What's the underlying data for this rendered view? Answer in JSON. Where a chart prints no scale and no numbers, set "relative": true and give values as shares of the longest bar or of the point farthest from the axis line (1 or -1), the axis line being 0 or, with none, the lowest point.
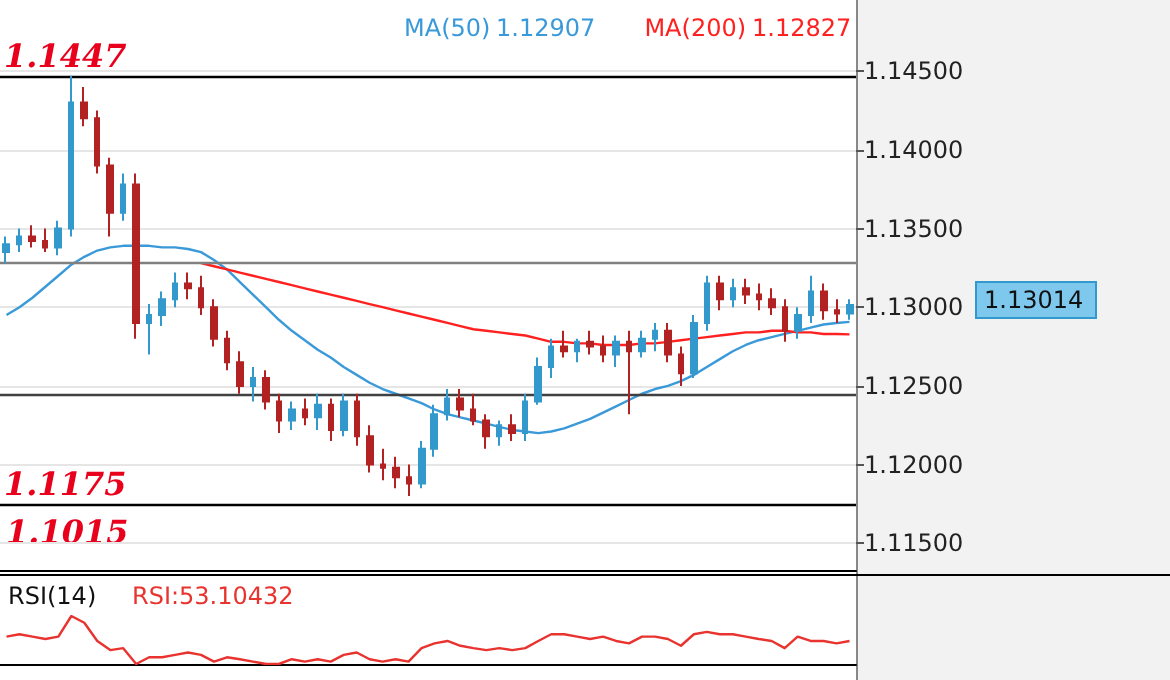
{
  "chart_data": [
    {
      "type": "candlestick",
      "legend": "top",
      "tick_labels": "y",
      "grid": "y",
      "categories": [
        null,
        null,
        null,
        null,
        null,
        null,
        null,
        null,
        null,
        null,
        null,
        null,
        null,
        null,
        null,
        null,
        null,
        null,
        null,
        null,
        null,
        null,
        null,
        null,
        null,
        null,
        null,
        null,
        null,
        null,
        null,
        null,
        null,
        null,
        null,
        null,
        null,
        null,
        null,
        null,
        null,
        null,
        null,
        null,
        null,
        null,
        null,
        null,
        null,
        null,
        null,
        null,
        null,
        null,
        null,
        null,
        null,
        null,
        null,
        null,
        null,
        null,
        null,
        null,
        null,
        null
      ],
      "ohlc": [
        [
          1.1335,
          1.1345,
          1.1328,
          1.134
        ],
        [
          1.134,
          1.135,
          1.1335,
          1.1345
        ],
        [
          1.1345,
          1.1352,
          1.1338,
          1.1342
        ],
        [
          1.1342,
          1.135,
          1.1335,
          1.1338
        ],
        [
          1.1338,
          1.1355,
          1.1333,
          1.135
        ],
        [
          1.135,
          1.1447,
          1.1345,
          1.143
        ],
        [
          1.143,
          1.144,
          1.1415,
          1.142
        ],
        [
          1.142,
          1.1425,
          1.1385,
          1.139
        ],
        [
          1.139,
          1.1395,
          1.1345,
          1.136
        ],
        [
          1.136,
          1.1385,
          1.1355,
          1.1378
        ],
        [
          1.1378,
          1.1385,
          1.128,
          1.129
        ],
        [
          1.129,
          1.1302,
          1.127,
          1.1295
        ],
        [
          1.1295,
          1.131,
          1.1288,
          1.1305
        ],
        [
          1.1305,
          1.1322,
          1.13,
          1.1315
        ],
        [
          1.1315,
          1.1322,
          1.1305,
          1.1312
        ],
        [
          1.1312,
          1.132,
          1.1295,
          1.13
        ],
        [
          1.13,
          1.1305,
          1.1275,
          1.128
        ],
        [
          1.128,
          1.1285,
          1.126,
          1.1265
        ],
        [
          1.1265,
          1.1272,
          1.1245,
          1.125
        ],
        [
          1.125,
          1.1262,
          1.124,
          1.1255
        ],
        [
          1.1255,
          1.126,
          1.1235,
          1.124
        ],
        [
          1.124,
          1.1245,
          1.122,
          1.1228
        ],
        [
          1.1228,
          1.124,
          1.1222,
          1.1235
        ],
        [
          1.1235,
          1.1242,
          1.1225,
          1.123
        ],
        [
          1.123,
          1.1245,
          1.1222,
          1.1238
        ],
        [
          1.1238,
          1.1242,
          1.1215,
          1.1222
        ],
        [
          1.1222,
          1.1245,
          1.1218,
          1.124
        ],
        [
          1.124,
          1.1245,
          1.1212,
          1.1218
        ],
        [
          1.1218,
          1.1225,
          1.1195,
          1.12
        ],
        [
          1.12,
          1.121,
          1.119,
          1.1198
        ],
        [
          1.1198,
          1.1205,
          1.1185,
          1.1192
        ],
        [
          1.1192,
          1.12,
          1.118,
          1.1188
        ],
        [
          1.1188,
          1.1215,
          1.1185,
          1.121
        ],
        [
          1.121,
          1.1238,
          1.1205,
          1.1232
        ],
        [
          1.1232,
          1.1248,
          1.1228,
          1.1242
        ],
        [
          1.1242,
          1.1248,
          1.123,
          1.1235
        ],
        [
          1.1235,
          1.1245,
          1.1225,
          1.1228
        ],
        [
          1.1228,
          1.1232,
          1.121,
          1.1218
        ],
        [
          1.1218,
          1.1228,
          1.1212,
          1.1225
        ],
        [
          1.1225,
          1.1232,
          1.1215,
          1.122
        ],
        [
          1.122,
          1.1245,
          1.1215,
          1.124
        ],
        [
          1.124,
          1.1268,
          1.1238,
          1.1262
        ],
        [
          1.1262,
          1.128,
          1.1255,
          1.1275
        ],
        [
          1.1275,
          1.1285,
          1.1268,
          1.1272
        ],
        [
          1.1272,
          1.128,
          1.1265,
          1.1278
        ],
        [
          1.1278,
          1.1285,
          1.127,
          1.1275
        ],
        [
          1.1275,
          1.1282,
          1.1265,
          1.127
        ],
        [
          1.127,
          1.1282,
          1.1262,
          1.1278
        ],
        [
          1.1278,
          1.1285,
          1.1232,
          1.1272
        ],
        [
          1.1272,
          1.1285,
          1.1268,
          1.128
        ],
        [
          1.128,
          1.129,
          1.1272,
          1.1285
        ],
        [
          1.1285,
          1.129,
          1.1265,
          1.127
        ],
        [
          1.127,
          1.1275,
          1.125,
          1.1258
        ],
        [
          1.1258,
          1.1295,
          1.1255,
          1.129
        ],
        [
          1.129,
          1.132,
          1.1285,
          1.1315
        ],
        [
          1.1315,
          1.132,
          1.1298,
          1.1305
        ],
        [
          1.1305,
          1.1318,
          1.13,
          1.1312
        ],
        [
          1.1312,
          1.1318,
          1.1302,
          1.1308
        ],
        [
          1.1308,
          1.1315,
          1.1298,
          1.1305
        ],
        [
          1.1305,
          1.1312,
          1.1295,
          1.13
        ],
        [
          1.13,
          1.1305,
          1.1278,
          1.1285
        ],
        [
          1.1285,
          1.13,
          1.128,
          1.1295
        ],
        [
          1.1295,
          1.132,
          1.129,
          1.131
        ],
        [
          1.131,
          1.1315,
          1.1292,
          1.1298
        ],
        [
          1.1298,
          1.1305,
          1.129,
          1.1296
        ],
        [
          1.1296,
          1.1305,
          1.1292,
          1.13014
        ]
      ],
      "colors": [
        "#3399cc",
        "#3399cc",
        "#b22222",
        "#b22222",
        "#3399cc",
        "#3399cc",
        "#b22222",
        "#b22222",
        "#b22222",
        "#3399cc",
        "#b22222",
        "#3399cc",
        "#3399cc",
        "#3399cc",
        "#b22222",
        "#b22222",
        "#b22222",
        "#b22222",
        "#b22222",
        "#3399cc",
        "#b22222",
        "#b22222",
        "#3399cc",
        "#b22222",
        "#3399cc",
        "#b22222",
        "#3399cc",
        "#b22222",
        "#b22222",
        "#b22222",
        "#b22222",
        "#b22222",
        "#3399cc",
        "#3399cc",
        "#3399cc",
        "#b22222",
        "#b22222",
        "#b22222",
        "#3399cc",
        "#b22222",
        "#3399cc",
        "#3399cc",
        "#3399cc",
        "#b22222",
        "#3399cc",
        "#b22222",
        "#b22222",
        "#3399cc",
        "#b22222",
        "#3399cc",
        "#3399cc",
        "#b22222",
        "#b22222",
        "#3399cc",
        "#3399cc",
        "#b22222",
        "#3399cc",
        "#b22222",
        "#b22222",
        "#b22222",
        "#b22222",
        "#3399cc",
        "#3399cc",
        "#b22222",
        "#b22222",
        "#3399cc"
      ],
      "series": [
        {
          "name": "MA(50)",
          "type": "line",
          "color": "#3a9ad9",
          "values": [
            1.1295,
            1.13,
            1.1306,
            1.1313,
            1.132,
            1.1327,
            1.1332,
            1.1336,
            1.1338,
            1.1339,
            1.1339,
            1.1339,
            1.1338,
            1.1338,
            1.1337,
            1.1335,
            1.133,
            1.1324,
            1.1316,
            1.1308,
            1.13,
            1.1292,
            1.1285,
            1.1279,
            1.1273,
            1.1268,
            1.1262,
            1.1257,
            1.1252,
            1.1248,
            1.1245,
            1.1242,
            1.1239,
            1.1235,
            1.1232,
            1.123,
            1.1228,
            1.1226,
            1.1224,
            1.1222,
            1.1221,
            1.122,
            1.1221,
            1.1223,
            1.1226,
            1.1229,
            1.1233,
            1.1237,
            1.1241,
            1.1245,
            1.1248,
            1.125,
            1.1253,
            1.1257,
            1.1262,
            1.1267,
            1.1272,
            1.1276,
            1.1279,
            1.1281,
            1.1283,
            1.1285,
            1.1287,
            1.1289,
            1.129,
            1.12907
          ]
        },
        {
          "name": "MA(200)",
          "type": "line",
          "color": "#ff2020",
          "values": [
            null,
            null,
            null,
            null,
            null,
            null,
            null,
            null,
            null,
            null,
            null,
            null,
            null,
            null,
            null,
            1.1328,
            1.1326,
            1.1324,
            1.1322,
            1.132,
            1.1318,
            1.1316,
            1.1314,
            1.1312,
            1.131,
            1.1308,
            1.1306,
            1.1304,
            1.1302,
            1.13,
            1.1298,
            1.1296,
            1.1294,
            1.1292,
            1.129,
            1.1288,
            1.1286,
            1.1285,
            1.1284,
            1.1283,
            1.1282,
            1.128,
            1.1278,
            1.1278,
            1.1277,
            1.1277,
            1.1276,
            1.1276,
            1.1276,
            1.1277,
            1.1277,
            1.1278,
            1.1279,
            1.128,
            1.1281,
            1.1282,
            1.1283,
            1.1284,
            1.1284,
            1.1285,
            1.1285,
            1.1284,
            1.1284,
            1.1283,
            1.1283,
            1.12827
          ]
        }
      ],
      "ylim": [
        1.1133,
        1.1452
      ],
      "yticks": [
        {
          "value": 1.115,
          "label": "1.11500"
        },
        {
          "value": 1.12,
          "label": "1.12000"
        },
        {
          "value": 1.125,
          "label": "1.12500"
        },
        {
          "value": 1.13,
          "label": "1.13000"
        },
        {
          "value": 1.135,
          "label": "1.13500"
        },
        {
          "value": 1.14,
          "label": "1.14000"
        },
        {
          "value": 1.145,
          "label": "1.14500"
        }
      ],
      "ref_lines": [
        {
          "axis": "y",
          "value": 1.1447,
          "label": "1.1447",
          "color": "#000000"
        },
        {
          "axis": "y",
          "value": 1.1175,
          "label": "1.1175",
          "color": "#000000"
        },
        {
          "axis": "y",
          "value": 1.1328,
          "label": null,
          "color": "#808080"
        },
        {
          "axis": "y",
          "value": 1.1244,
          "label": null,
          "color": "#404040"
        }
      ],
      "annotations": [
        "1.1015",
        "1.13014",
        "1.12907",
        "1.12827"
      ]
    },
    {
      "type": "line",
      "relative": true,
      "tick_labels": false,
      "title": "RSI(14)",
      "categories": [
        null,
        null,
        null,
        null,
        null,
        null,
        null,
        null,
        null,
        null,
        null,
        null,
        null,
        null,
        null,
        null,
        null,
        null,
        null,
        null,
        null,
        null,
        null,
        null,
        null,
        null,
        null,
        null,
        null,
        null,
        null,
        null,
        null,
        null,
        null,
        null,
        null,
        null,
        null,
        null,
        null,
        null,
        null,
        null,
        null,
        null,
        null,
        null,
        null,
        null,
        null,
        null,
        null,
        null,
        null,
        null,
        null,
        null,
        null,
        null,
        null,
        null,
        null,
        null,
        null,
        null
      ],
      "series": [
        {
          "color": "#e8332f",
          "values": [
            0.57,
            0.62,
            0.57,
            0.52,
            0.57,
            1,
            0.86,
            0.48,
            0.29,
            0.33,
            0,
            0.14,
            0.14,
            0.19,
            0.24,
            0.19,
            0.05,
            0.14,
            0.1,
            0.05,
            0,
            0,
            0.1,
            0.05,
            0.1,
            0.05,
            0.19,
            0.24,
            0.1,
            0.05,
            0.1,
            0.05,
            0.33,
            0.43,
            0.48,
            0.38,
            0.33,
            0.29,
            0.33,
            0.29,
            0.33,
            0.48,
            0.62,
            0.62,
            0.57,
            0.52,
            0.57,
            0.48,
            0.43,
            0.57,
            0.57,
            0.52,
            0.38,
            0.62,
            0.67,
            0.62,
            0.62,
            0.57,
            0.52,
            0.48,
            0.33,
            0.57,
            0.48,
            0.48,
            0.43,
            0.48
          ]
        }
      ],
      "annotations": [
        "RSI:53.10432"
      ]
    }
  ]
}
